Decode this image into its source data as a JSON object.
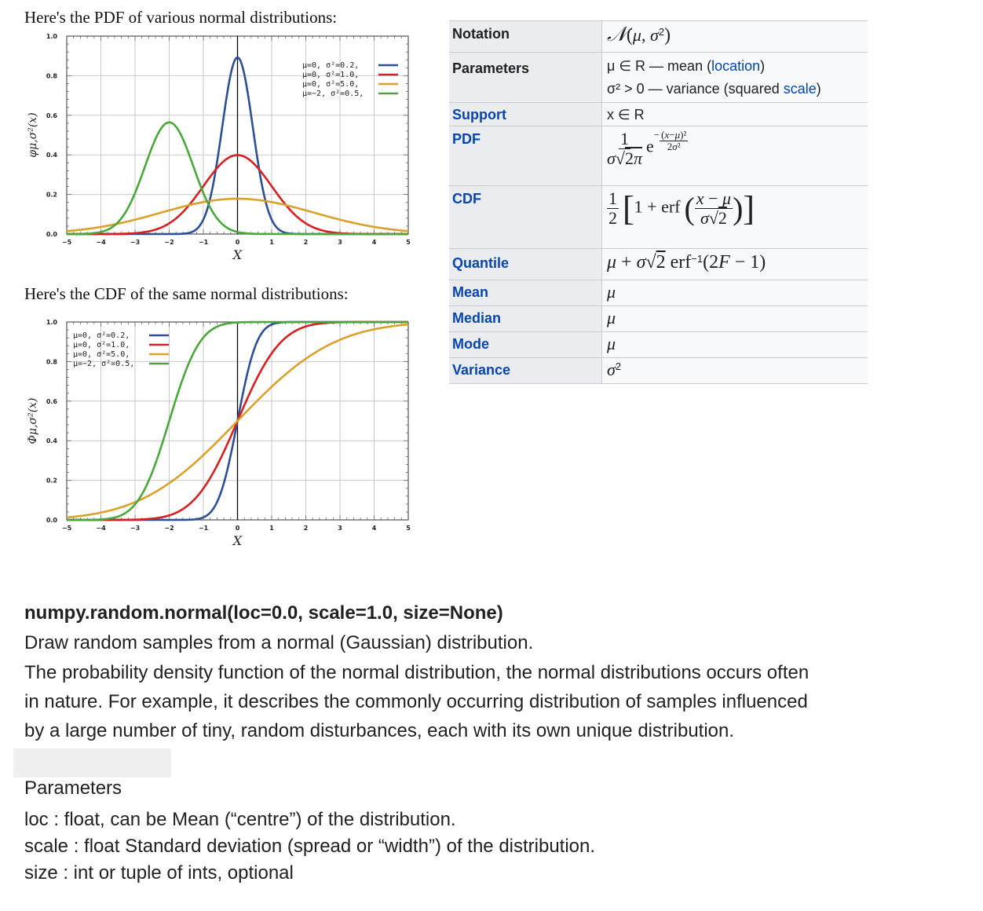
{
  "pdf_section": {
    "title": "Here's the PDF of various normal distributions:",
    "ylabel": "φμ,σ²(x)",
    "xlabel": "X"
  },
  "cdf_section": {
    "title": "Here's the CDF of the same normal distributions:",
    "ylabel": "Φμ,σ²(x)",
    "xlabel": "X"
  },
  "legend": [
    {
      "label": "μ=0,  σ²=0.2,",
      "color": "#2d4f96"
    },
    {
      "label": "μ=0,  σ²=1.0,",
      "color": "#d62020"
    },
    {
      "label": "μ=0,  σ²=5.0,",
      "color": "#d9a02c"
    },
    {
      "label": "μ=−2, σ²=0.5,",
      "color": "#4aa83a"
    }
  ],
  "chart_data": [
    {
      "type": "line",
      "title": "Here's the PDF of various normal distributions:",
      "xlabel": "X",
      "ylabel": "φμ,σ²(x)",
      "xlim": [
        -5,
        5
      ],
      "ylim": [
        0,
        1.0
      ],
      "xticks": [
        "−5",
        "−4",
        "−3",
        "−2",
        "−1",
        "0",
        "1",
        "2",
        "3",
        "4",
        "5"
      ],
      "yticks": [
        "0.0",
        "0.2",
        "0.4",
        "0.6",
        "0.8",
        "1.0"
      ],
      "grid": true,
      "legend_position": "top-right",
      "series": [
        {
          "name": "μ=0, σ²=0.2",
          "mu": 0,
          "var": 0.2,
          "color": "#2d4f96"
        },
        {
          "name": "μ=0, σ²=1.0",
          "mu": 0,
          "var": 1.0,
          "color": "#d62020"
        },
        {
          "name": "μ=0, σ²=5.0",
          "mu": 0,
          "var": 5.0,
          "color": "#d9a02c"
        },
        {
          "name": "μ=−2, σ²=0.5",
          "mu": -2,
          "var": 0.5,
          "color": "#4aa83a"
        }
      ]
    },
    {
      "type": "line",
      "title": "Here's the CDF of the same normal distributions:",
      "xlabel": "X",
      "ylabel": "Φμ,σ²(x)",
      "xlim": [
        -5,
        5
      ],
      "ylim": [
        0,
        1.0
      ],
      "xticks": [
        "−5",
        "−4",
        "−3",
        "−2",
        "−1",
        "0",
        "1",
        "2",
        "3",
        "4",
        "5"
      ],
      "yticks": [
        "0.0",
        "0.2",
        "0.4",
        "0.6",
        "0.8",
        "1.0"
      ],
      "grid": true,
      "legend_position": "top-left",
      "series": [
        {
          "name": "μ=0, σ²=0.2",
          "mu": 0,
          "var": 0.2,
          "color": "#2d4f96"
        },
        {
          "name": "μ=0, σ²=1.0",
          "mu": 0,
          "var": 1.0,
          "color": "#d62020"
        },
        {
          "name": "μ=0, σ²=5.0",
          "mu": 0,
          "var": 5.0,
          "color": "#d9a02c"
        },
        {
          "name": "μ=−2, σ²=0.5",
          "mu": -2,
          "var": 0.5,
          "color": "#4aa83a"
        }
      ]
    }
  ],
  "infobox": {
    "notation_label": "Notation",
    "parameters_label": "Parameters",
    "param1_prefix": "μ ∈ R — mean (",
    "param1_link": "location",
    "param1_suffix": ")",
    "param2_prefix": "σ² > 0 — variance (squared ",
    "param2_link": "scale",
    "param2_suffix": ")",
    "support_label": "Support",
    "support_value": "x ∈ R",
    "pdf_label": "PDF",
    "cdf_label": "CDF",
    "quantile_label": "Quantile",
    "mean_label": "Mean",
    "median_label": "Median",
    "mode_label": "Mode",
    "variance_label": "Variance"
  },
  "description": {
    "signature": "numpy.random.normal(loc=0.0, scale=1.0, size=None)",
    "summary": "Draw random samples from a normal (Gaussian) distribution.",
    "body_line1": "The probability density function of the normal distribution, the normal distributions occurs often",
    "body_line2": "in nature. For example, it describes the commonly occurring distribution of samples influenced",
    "body_line3": "by a large number of tiny, random disturbances, each with its own unique distribution.",
    "params_heading": "Parameters",
    "param_loc": "loc : float, can be Mean (“centre”) of the distribution.",
    "param_scale": "scale : float Standard deviation (spread or “width”) of the distribution.",
    "param_size": "size : int or tuple of ints, optional"
  }
}
